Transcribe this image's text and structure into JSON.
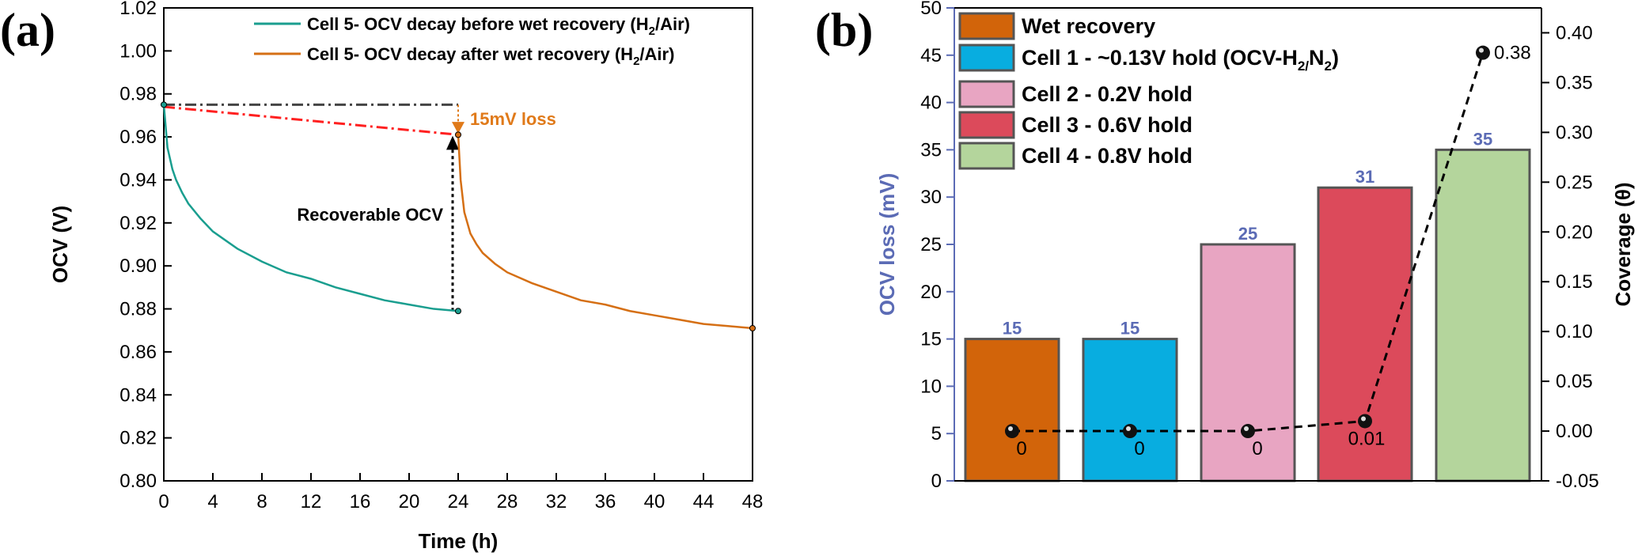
{
  "chart_data": [
    {
      "panel_label": "(a)",
      "type": "line",
      "xlabel": "Time (h)",
      "ylabel": "OCV (V)",
      "xlim": [
        0,
        48
      ],
      "ylim": [
        0.8,
        1.02
      ],
      "xticks": [
        "0",
        "4",
        "8",
        "12",
        "16",
        "20",
        "24",
        "28",
        "32",
        "36",
        "40",
        "44",
        "48"
      ],
      "yticks": [
        "0.80",
        "0.82",
        "0.84",
        "0.86",
        "0.88",
        "0.90",
        "0.92",
        "0.94",
        "0.96",
        "0.98",
        "1.00",
        "1.02"
      ],
      "grid": false,
      "legend_position": "top-right",
      "series": [
        {
          "name": "Cell 5- OCV decay before wet recovery (H2/Air)",
          "color": "#1a9e8f",
          "x": [
            0,
            0.3,
            0.7,
            1,
            1.5,
            2,
            3,
            4,
            5,
            6,
            8,
            10,
            12,
            14,
            16,
            18,
            20,
            22,
            24
          ],
          "y": [
            0.975,
            0.955,
            0.945,
            0.94,
            0.934,
            0.929,
            0.922,
            0.916,
            0.912,
            0.908,
            0.902,
            0.897,
            0.894,
            0.89,
            0.887,
            0.884,
            0.882,
            0.88,
            0.879
          ]
        },
        {
          "name": "Cell 5- OCV decay after wet recovery (H2/Air)",
          "color": "#d56f14",
          "x": [
            24,
            24.2,
            24.5,
            25,
            25.5,
            26,
            27,
            28,
            30,
            32,
            34,
            36,
            38,
            40,
            42,
            44,
            46,
            48
          ],
          "y": [
            0.961,
            0.94,
            0.925,
            0.915,
            0.91,
            0.906,
            0.901,
            0.897,
            0.892,
            0.888,
            0.884,
            0.882,
            0.879,
            0.877,
            0.875,
            0.873,
            0.872,
            0.871
          ]
        }
      ],
      "annotations": {
        "loss_text": "15mV loss",
        "loss_color": "#e07a1a",
        "recoverable_text": "Recoverable OCV",
        "reference_line_value": 0.975,
        "trend_line": {
          "x": [
            0,
            24
          ],
          "y": [
            0.974,
            0.961
          ],
          "color": "#ff2020"
        }
      },
      "legend": {
        "before": {
          "main": "Cell 5- OCV decay before wet recovery (H",
          "sub": "2",
          "end": "/Air)"
        },
        "after": {
          "main": "Cell 5- OCV decay after wet recovery (H",
          "sub": "2",
          "end": "/Air)"
        }
      }
    },
    {
      "panel_label": "(b)",
      "type": "bar",
      "ylabel": "OCV loss (mV)",
      "y2label": "Coverage (θ)",
      "ylim": [
        0,
        50
      ],
      "y2lim": [
        -0.05,
        0.425
      ],
      "yticks": [
        "0",
        "5",
        "10",
        "15",
        "20",
        "25",
        "30",
        "35",
        "40",
        "45",
        "50"
      ],
      "y2ticks": [
        "-0.05",
        "0.00",
        "0.05",
        "0.10",
        "0.15",
        "0.20",
        "0.25",
        "0.30",
        "0.35",
        "0.40"
      ],
      "axis_color": "#5b6bb5",
      "categories": [
        "Wet recovery",
        "Cell 1 - ~0.13V hold (OCV-H2/N2)",
        "Cell 2 - 0.2V hold",
        "Cell 3 - 0.6V hold",
        "Cell 4 - 0.8V hold"
      ],
      "values": [
        15,
        15,
        25,
        31,
        35
      ],
      "value_labels": [
        "15",
        "15",
        "25",
        "31",
        "35"
      ],
      "colors": [
        "#d2640a",
        "#08ade0",
        "#e8a5c2",
        "#dc4a5b",
        "#b4d59c"
      ],
      "coverage": [
        0,
        0,
        0,
        0.01,
        0.38
      ],
      "coverage_labels": [
        "0",
        "0",
        "0",
        "0.01",
        "0.38"
      ],
      "legend_position": "top-left",
      "legend": [
        {
          "main": "Wet recovery"
        },
        {
          "main": "Cell 1 - ~0.13V hold (OCV-H",
          "sub": "2/",
          "mid": "N",
          "sub2": "2",
          "end": ")"
        },
        {
          "main": "Cell 2 - 0.2V hold"
        },
        {
          "main": "Cell 3 - 0.6V hold"
        },
        {
          "main": "Cell 4 - 0.8V hold"
        }
      ]
    }
  ]
}
